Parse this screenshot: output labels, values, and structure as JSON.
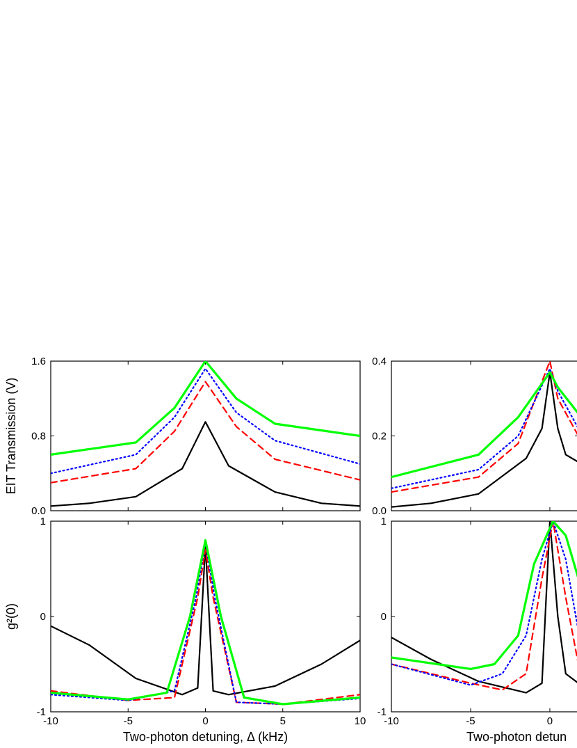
{
  "chart_data": [
    {
      "type": "line",
      "panel": "top-left",
      "ylabel": "EIT Transmission (V)",
      "xlabel": "",
      "xlim": [
        -10,
        10
      ],
      "ylim": [
        0,
        1.6
      ],
      "xticks": [
        "-10",
        "-5",
        "0",
        "5",
        "10"
      ],
      "yticks": [
        "0.0",
        "0.8",
        "1.6"
      ],
      "series": [
        {
          "color": "#000000",
          "dash": "solid",
          "x": [
            -10,
            -7.5,
            -4.5,
            -1.5,
            0,
            1.5,
            4.5,
            7.5,
            10
          ],
          "y": [
            0.05,
            0.08,
            0.15,
            0.45,
            0.95,
            0.48,
            0.2,
            0.08,
            0.05
          ]
        },
        {
          "color": "#ff0000",
          "dash": "dashed",
          "x": [
            -10,
            -4.5,
            -2,
            0,
            2,
            4.5,
            10
          ],
          "y": [
            0.3,
            0.45,
            0.85,
            1.38,
            0.9,
            0.55,
            0.33
          ]
        },
        {
          "color": "#0000ff",
          "dash": "dotted",
          "x": [
            -10,
            -4.5,
            -2,
            0,
            2,
            4.5,
            10
          ],
          "y": [
            0.4,
            0.6,
            1.0,
            1.52,
            1.05,
            0.75,
            0.5
          ]
        },
        {
          "color": "#00ff00",
          "dash": "solid",
          "x": [
            -10,
            -4.5,
            -2,
            0,
            2,
            4.5,
            10
          ],
          "y": [
            0.6,
            0.73,
            1.1,
            1.6,
            1.2,
            0.93,
            0.8
          ]
        }
      ]
    },
    {
      "type": "line",
      "panel": "top-right",
      "ylabel": "",
      "xlabel": "",
      "xlim": [
        -10,
        1.8
      ],
      "ylim": [
        0,
        0.4
      ],
      "xticks": [
        "-10",
        "-5",
        "0"
      ],
      "yticks": [
        "0.0",
        "0.2",
        "0.4"
      ],
      "series": [
        {
          "color": "#000000",
          "dash": "solid",
          "x": [
            -10,
            -7.5,
            -4.5,
            -1.5,
            -0.5,
            0,
            0.5,
            1.0,
            1.8
          ],
          "y": [
            0.01,
            0.02,
            0.045,
            0.14,
            0.22,
            0.37,
            0.22,
            0.15,
            0.13
          ]
        },
        {
          "color": "#ff0000",
          "dash": "dashed",
          "x": [
            -10,
            -4.5,
            -2,
            0,
            0.5,
            1.8
          ],
          "y": [
            0.05,
            0.09,
            0.18,
            0.4,
            0.3,
            0.2
          ]
        },
        {
          "color": "#0000ff",
          "dash": "dotted",
          "x": [
            -10,
            -4.5,
            -2,
            0,
            0.5,
            1.8
          ],
          "y": [
            0.06,
            0.11,
            0.2,
            0.38,
            0.32,
            0.22
          ]
        },
        {
          "color": "#00ff00",
          "dash": "solid",
          "x": [
            -10,
            -4.5,
            -2,
            0,
            0.5,
            1.8
          ],
          "y": [
            0.09,
            0.15,
            0.25,
            0.37,
            0.33,
            0.26
          ]
        }
      ]
    },
    {
      "type": "line",
      "panel": "bottom-left",
      "ylabel": "g²(0)",
      "xlabel": "Two-photon detuning, Δ (kHz)",
      "xlim": [
        -10,
        10
      ],
      "ylim": [
        -1,
        1
      ],
      "xticks": [
        "-10",
        "-5",
        "0",
        "5",
        "10"
      ],
      "yticks": [
        "-1",
        "0",
        "1"
      ],
      "series": [
        {
          "color": "#000000",
          "dash": "solid",
          "x": [
            -10,
            -7.5,
            -4.5,
            -1.5,
            -0.5,
            0,
            0.5,
            1.5,
            4.5,
            7.5,
            10
          ],
          "y": [
            -0.1,
            -0.3,
            -0.65,
            -0.82,
            -0.75,
            0.75,
            -0.78,
            -0.82,
            -0.73,
            -0.5,
            -0.25
          ]
        },
        {
          "color": "#ff0000",
          "dash": "dashed",
          "x": [
            -10,
            -5,
            -2,
            -0.5,
            0,
            0.5,
            2,
            5,
            10
          ],
          "y": [
            -0.78,
            -0.88,
            -0.85,
            0.2,
            0.7,
            0.2,
            -0.9,
            -0.92,
            -0.82
          ]
        },
        {
          "color": "#0000ff",
          "dash": "dotted",
          "x": [
            -10,
            -5,
            -2,
            -0.6,
            0,
            0.6,
            2,
            5,
            10
          ],
          "y": [
            -0.82,
            -0.88,
            -0.78,
            0.2,
            0.78,
            0.2,
            -0.9,
            -0.92,
            -0.86
          ]
        },
        {
          "color": "#00ff00",
          "dash": "solid",
          "x": [
            -10,
            -5,
            -2.5,
            -1,
            0,
            1,
            2.5,
            5,
            10
          ],
          "y": [
            -0.8,
            -0.87,
            -0.8,
            0.0,
            0.8,
            0.0,
            -0.85,
            -0.92,
            -0.85
          ]
        }
      ]
    },
    {
      "type": "line",
      "panel": "bottom-right",
      "ylabel": "",
      "xlabel": "Two-photon detun",
      "xlim": [
        -10,
        1.8
      ],
      "ylim": [
        -1,
        1
      ],
      "xticks": [
        "-10",
        "-5",
        "0"
      ],
      "yticks": [
        "-1",
        "0",
        "1"
      ],
      "series": [
        {
          "color": "#000000",
          "dash": "solid",
          "x": [
            -10,
            -7.5,
            -4.5,
            -1.5,
            -0.5,
            0,
            0.5,
            1.0,
            1.8
          ],
          "y": [
            -0.22,
            -0.45,
            -0.68,
            -0.8,
            -0.7,
            1.0,
            0.0,
            -0.6,
            -0.7
          ]
        },
        {
          "color": "#ff0000",
          "dash": "dashed",
          "x": [
            -10,
            -5,
            -3,
            -1.5,
            -0.5,
            0.2,
            1.0,
            1.8
          ],
          "y": [
            -0.5,
            -0.7,
            -0.77,
            -0.6,
            0.4,
            1.0,
            0.2,
            -0.5
          ]
        },
        {
          "color": "#0000ff",
          "dash": "dotted",
          "x": [
            -10,
            -5,
            -3,
            -1.5,
            -0.5,
            0.2,
            1.0,
            1.8
          ],
          "y": [
            -0.5,
            -0.72,
            -0.6,
            -0.2,
            0.6,
            1.0,
            0.6,
            -0.15
          ]
        },
        {
          "color": "#00ff00",
          "dash": "solid",
          "x": [
            -10,
            -5,
            -3.5,
            -2,
            -1,
            0.2,
            1.0,
            1.8
          ],
          "y": [
            -0.43,
            -0.55,
            -0.5,
            -0.2,
            0.55,
            1.0,
            0.85,
            0.4
          ]
        }
      ]
    }
  ]
}
